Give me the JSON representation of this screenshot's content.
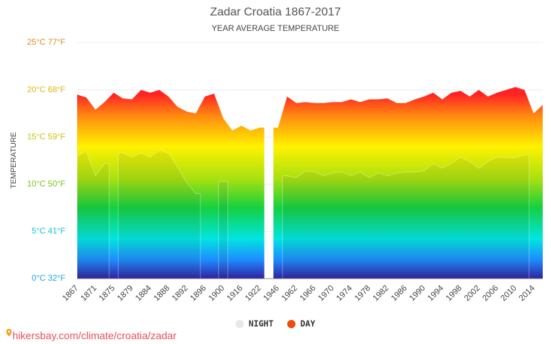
{
  "chart_data": {
    "type": "area",
    "title": "Zadar Croatia 1867-2017",
    "subtitle": "YEAR AVERAGE TEMPERATURE",
    "y_label": "TEMPERATURE",
    "source": "hikersbay.com/climate/croatia/zadar",
    "categories": [
      "1867",
      null,
      "1871",
      null,
      "1875",
      null,
      "1879",
      null,
      "1884",
      null,
      "1888",
      null,
      "1892",
      null,
      "1896",
      null,
      "1900",
      null,
      "1916",
      null,
      "1922",
      null,
      "1946",
      null,
      "1962",
      null,
      "1966",
      null,
      "1970",
      null,
      "1974",
      null,
      "1978",
      null,
      "1982",
      null,
      "1986",
      null,
      "1990",
      null,
      "1994",
      null,
      "1998",
      null,
      "2002",
      null,
      "2006",
      null,
      "2010",
      null,
      "2014",
      null
    ],
    "series": [
      {
        "name": "DAY",
        "color": "#f04a0c",
        "values": [
          19.5,
          19.2,
          17.9,
          18.7,
          19.7,
          19.1,
          19.0,
          20.0,
          19.7,
          20.0,
          19.3,
          18.2,
          17.7,
          17.5,
          19.3,
          19.6,
          17.0,
          15.7,
          16.2,
          15.7,
          16.0,
          null,
          16.0,
          19.3,
          18.6,
          18.7,
          18.6,
          18.6,
          18.7,
          18.7,
          19.0,
          18.7,
          19.0,
          19.0,
          19.1,
          18.6,
          18.6,
          19.0,
          19.3,
          19.7,
          19.0,
          19.7,
          19.9,
          19.3,
          20.0,
          19.3,
          19.7,
          20.0,
          20.3,
          20.0,
          17.5,
          18.4
        ]
      },
      {
        "name": "NIGHT",
        "color": "#e8e8e8",
        "values": [
          13.0,
          13.5,
          10.9,
          12.2,
          null,
          13.3,
          12.9,
          13.3,
          12.9,
          13.6,
          13.3,
          11.8,
          10.2,
          9.0,
          null,
          null,
          10.3,
          null,
          null,
          null,
          null,
          null,
          null,
          10.9,
          10.7,
          11.4,
          11.3,
          10.9,
          11.2,
          11.3,
          10.9,
          11.3,
          10.7,
          11.2,
          10.9,
          11.2,
          11.3,
          11.3,
          11.4,
          12.2,
          11.7,
          12.2,
          12.9,
          12.4,
          11.7,
          12.4,
          12.9,
          12.8,
          12.8,
          13.1,
          null,
          null
        ]
      }
    ],
    "legend_order": [
      "NIGHT",
      "DAY"
    ],
    "ylim": [
      0,
      25
    ],
    "yticks": [
      {
        "value": 0,
        "label": "0°C 32°F"
      },
      {
        "value": 5,
        "label": "5°C 41°F"
      },
      {
        "value": 10,
        "label": "10°C 50°F"
      },
      {
        "value": 15,
        "label": "15°C 59°F"
      },
      {
        "value": 20,
        "label": "20°C 68°F"
      },
      {
        "value": 25,
        "label": "25°C 77°F"
      }
    ],
    "ytick_colors": [
      "#1aa3e8",
      "#19c2d6",
      "#78c21a",
      "#c4c40e",
      "#d8b814",
      "#e08a1c"
    ],
    "grid": true
  }
}
